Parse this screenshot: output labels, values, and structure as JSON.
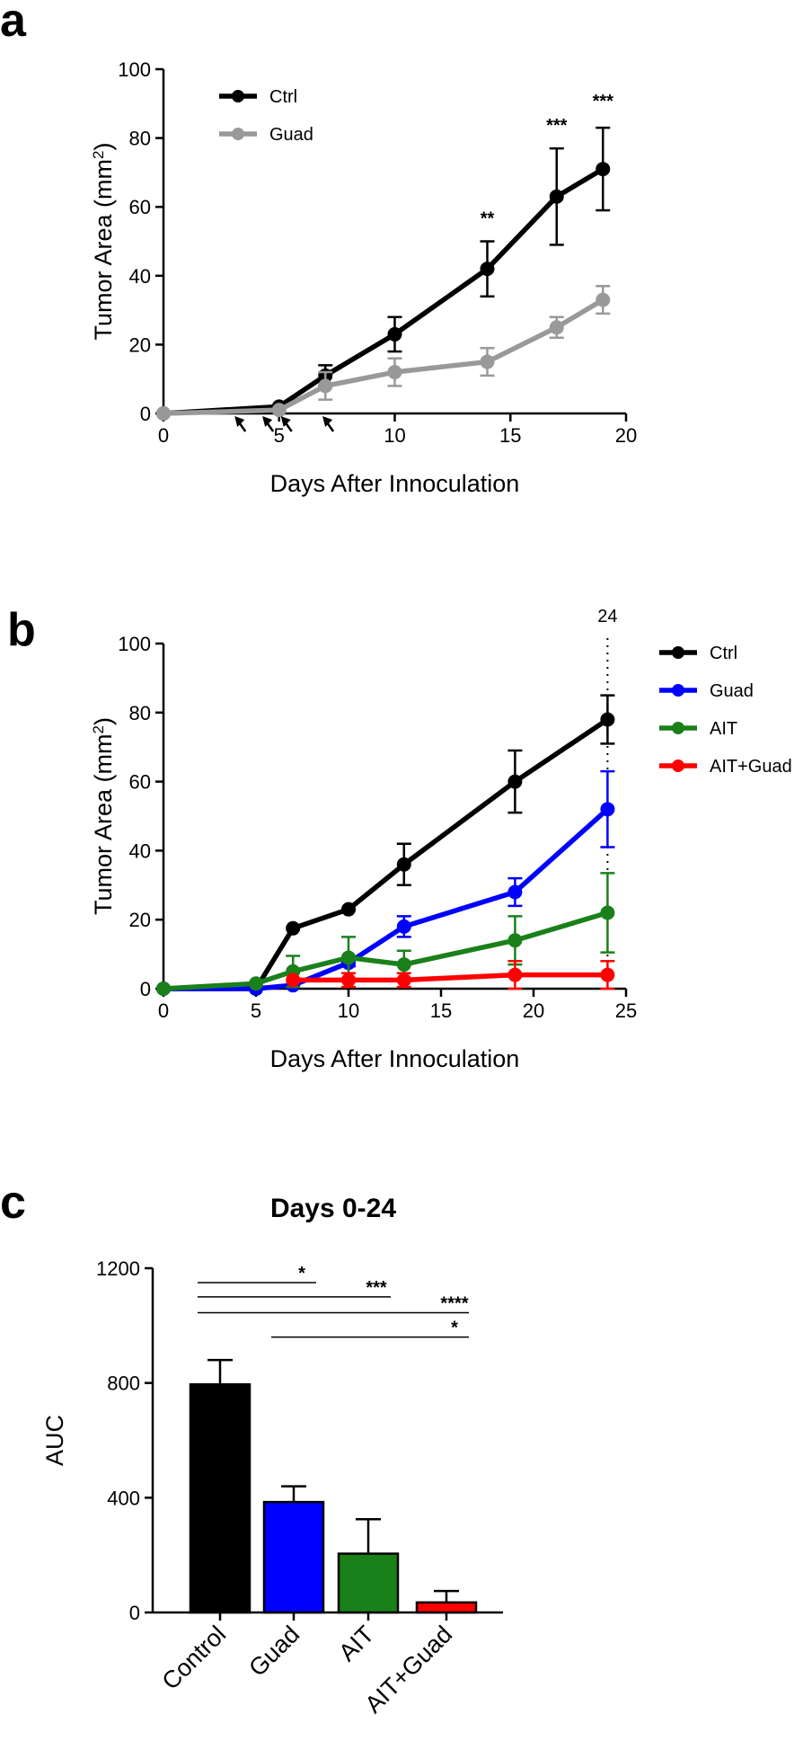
{
  "chart_data": [
    {
      "panel": "a",
      "type": "line",
      "xlabel": "Days After Innoculation",
      "ylabel": "Tumor Area (mm",
      "ylabel_sup": "2",
      "ylabel_close": ")",
      "xlim": [
        0,
        20
      ],
      "ylim": [
        0,
        100
      ],
      "xticks": [
        0,
        5,
        10,
        15,
        20
      ],
      "yticks": [
        0,
        20,
        40,
        60,
        80,
        100
      ],
      "treatment_arrows_x": [
        3,
        4.2,
        5,
        6.8
      ],
      "series": [
        {
          "name": "Ctrl",
          "color": "#000000",
          "x": [
            0,
            5,
            7,
            10,
            14,
            17,
            19
          ],
          "y": [
            0,
            2,
            11,
            23,
            42,
            63,
            71
          ],
          "err": [
            0,
            0,
            3,
            5,
            8,
            14,
            12
          ]
        },
        {
          "name": "Guad",
          "color": "#999999",
          "x": [
            0,
            5,
            7,
            10,
            14,
            17,
            19
          ],
          "y": [
            0,
            1,
            8,
            12,
            15,
            25,
            33
          ],
          "err": [
            0,
            0,
            4,
            4,
            4,
            3,
            4
          ]
        }
      ],
      "annotations": [
        {
          "x": 14,
          "y": 55,
          "text": "**"
        },
        {
          "x": 17,
          "y": 82,
          "text": "***"
        },
        {
          "x": 19,
          "y": 89,
          "text": "***"
        }
      ]
    },
    {
      "panel": "b",
      "type": "line",
      "xlabel": "Days After Innoculation",
      "ylabel": "Tumor Area (mm",
      "ylabel_sup": "2",
      "ylabel_close": ")",
      "xlim": [
        0,
        25
      ],
      "ylim": [
        0,
        100
      ],
      "xticks": [
        0,
        5,
        10,
        15,
        20,
        25
      ],
      "yticks": [
        0,
        20,
        40,
        60,
        80,
        100
      ],
      "marker_line": {
        "x": 24,
        "label": "24"
      },
      "series": [
        {
          "name": "Ctrl",
          "color": "#000000",
          "x": [
            0,
            5,
            7,
            10,
            13,
            19,
            24
          ],
          "y": [
            0,
            0,
            17.5,
            23,
            36,
            60,
            78
          ],
          "err": [
            0,
            0,
            0,
            0,
            6,
            9,
            7
          ]
        },
        {
          "name": "Guad",
          "color": "#0000ff",
          "x": [
            0,
            5,
            7,
            10,
            13,
            19,
            24
          ],
          "y": [
            0,
            0,
            1,
            7.5,
            18,
            28,
            52
          ],
          "err": [
            0,
            0,
            0,
            1,
            3,
            4,
            11
          ]
        },
        {
          "name": "AIT",
          "color": "#1a801a",
          "x": [
            0,
            5,
            7,
            10,
            13,
            19,
            24
          ],
          "y": [
            0,
            1.5,
            5,
            9,
            7,
            14,
            22
          ],
          "err": [
            0,
            0,
            4.5,
            6,
            4,
            7,
            11.5
          ]
        },
        {
          "name": "AIT+Guad",
          "color": "#ff0000",
          "x": [
            7,
            10,
            13,
            19,
            24
          ],
          "y": [
            2.5,
            2.5,
            2.5,
            4,
            4
          ],
          "err": [
            0,
            2,
            2,
            4,
            4
          ]
        }
      ]
    },
    {
      "panel": "c",
      "type": "bar",
      "title": "Days 0-24",
      "ylabel": "AUC",
      "ylim": [
        0,
        1200
      ],
      "yticks": [
        0,
        400,
        800,
        1200
      ],
      "categories": [
        "Control",
        "Guad",
        "AIT",
        "AIT+Guad"
      ],
      "values": [
        795,
        385,
        205,
        35
      ],
      "errors": [
        85,
        55,
        120,
        40
      ],
      "colors": [
        "#000000",
        "#0000ff",
        "#1a801a",
        "#ff0000"
      ],
      "significance": [
        {
          "from": 0,
          "to": 1,
          "y": 1150,
          "text": "*"
        },
        {
          "from": 0,
          "to": 2,
          "y": 1100,
          "text": "***"
        },
        {
          "from": 0,
          "to": 3,
          "y": 1045,
          "text": "****"
        },
        {
          "from": 1,
          "to": 3,
          "y": 960,
          "text": "*"
        }
      ]
    }
  ]
}
